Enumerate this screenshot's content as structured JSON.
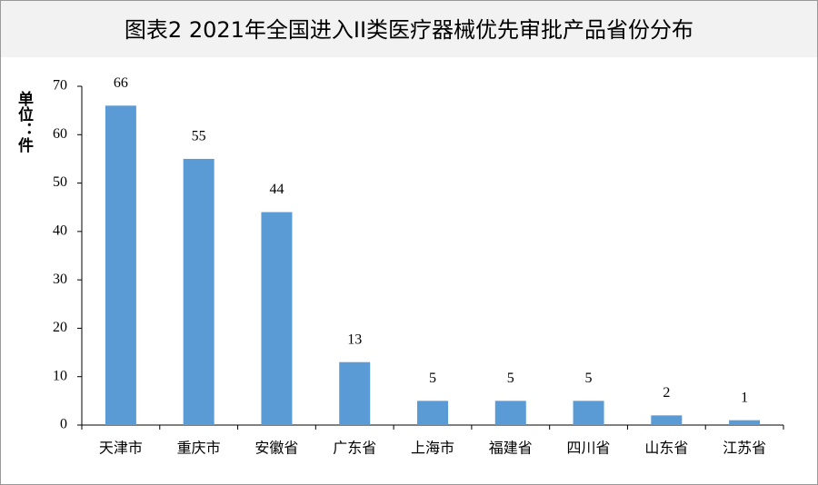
{
  "chart_data": {
    "type": "bar",
    "title": "图表2  2021年全国进入II类医疗器械优先审批产品省份分布",
    "y_label": "单位：件",
    "categories": [
      "天津市",
      "重庆市",
      "安徽省",
      "广东省",
      "上海市",
      "福建省",
      "四川省",
      "山东省",
      "江苏省"
    ],
    "values": [
      66,
      55,
      44,
      13,
      5,
      5,
      5,
      2,
      1
    ],
    "color": "#5b9bd5",
    "ylim": [
      0,
      70
    ],
    "yticks": [
      0,
      10,
      20,
      30,
      40,
      50,
      60,
      70
    ],
    "grid": false
  }
}
